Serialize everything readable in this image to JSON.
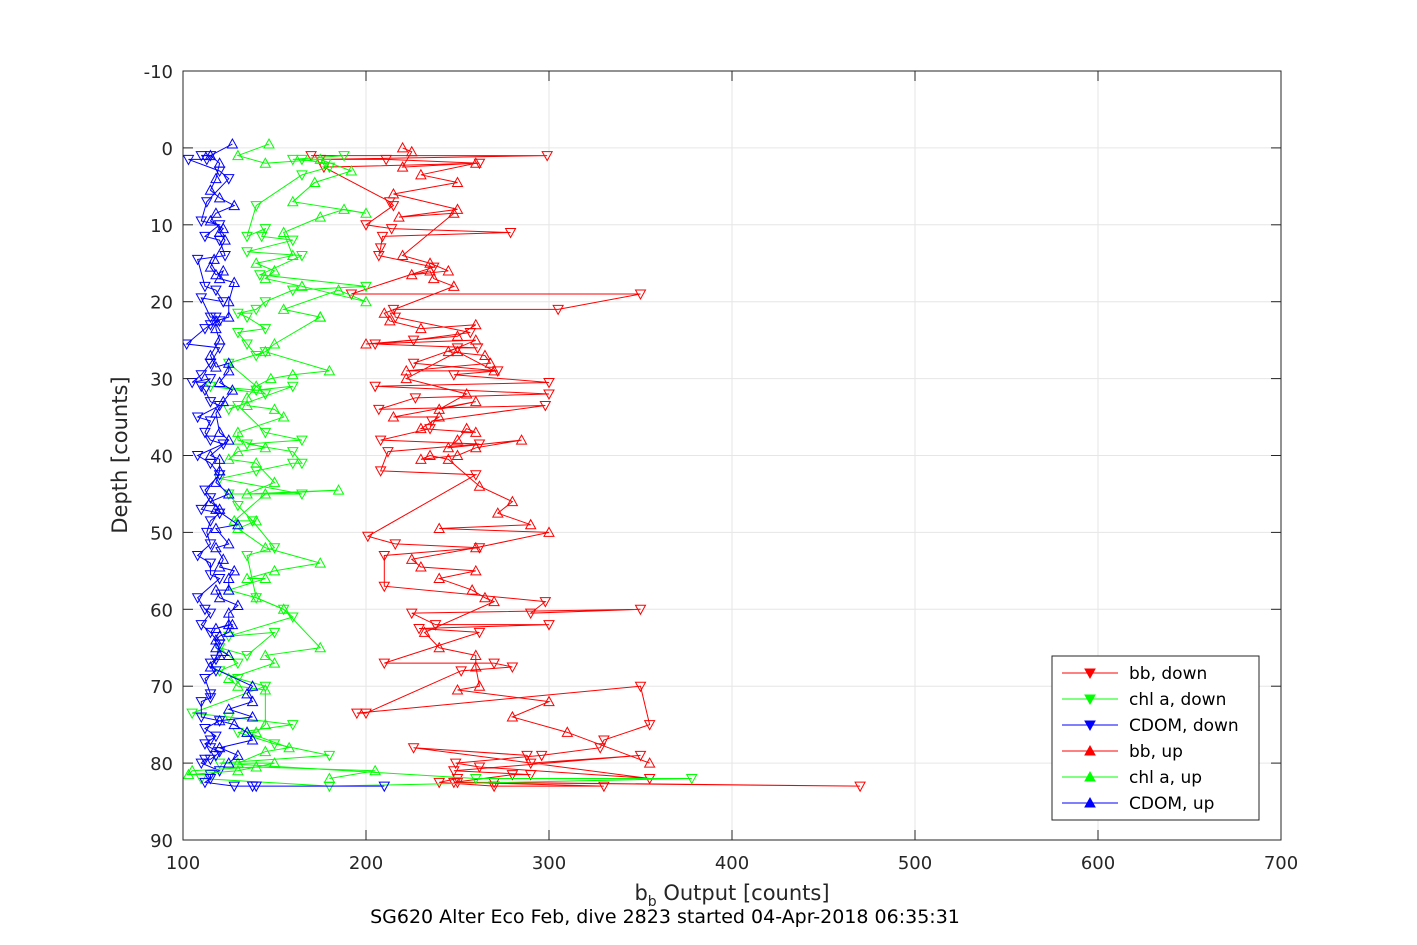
{
  "chart_data": {
    "type": "line",
    "xlabel_main": "b",
    "xlabel_sub": "b",
    "xlabel_rest": " Output [counts]",
    "ylabel": "Depth [counts]",
    "caption": "SG620 Alter Eco Feb, dive 2823 started 04-Apr-2018 06:35:31",
    "xlim": [
      100,
      700
    ],
    "ylim": [
      -10,
      90
    ],
    "y_reversed": true,
    "grid": true,
    "legend_position": "bottom-right",
    "xticks": [
      "100",
      "200",
      "300",
      "400",
      "500",
      "600",
      "700"
    ],
    "yticks": [
      "-10",
      "0",
      "10",
      "20",
      "30",
      "40",
      "50",
      "60",
      "70",
      "80",
      "90"
    ],
    "series": [
      {
        "name": "bb, down",
        "color": "#ff0000",
        "marker": "triangle-down",
        "x": [
          170,
          299,
          175,
          211,
          262,
          177,
          213,
          215,
          200,
          214,
          279,
          209,
          208,
          207,
          237,
          192,
          350,
          305,
          215,
          216,
          257,
          226,
          205,
          261,
          250,
          226,
          272,
          248,
          300,
          205,
          300,
          227,
          207,
          298,
          236,
          235,
          208,
          262,
          212,
          208,
          260,
          201,
          216,
          262,
          210,
          210,
          298,
          290,
          350,
          225,
          238,
          300,
          229,
          262,
          210,
          270,
          280,
          252,
          200,
          195,
          350,
          355,
          330,
          328,
          296,
          249,
          262,
          355,
          226,
          288,
          290,
          350,
          248,
          290,
          280,
          248,
          270,
          470,
          250,
          330,
          270,
          240,
          250
        ],
        "y": [
          1,
          1,
          1.5,
          1.5,
          2,
          2.5,
          7,
          7.5,
          10,
          10.5,
          11,
          11.5,
          13,
          14,
          15.5,
          19,
          19,
          21,
          21,
          22,
          24,
          25,
          25.5,
          26,
          26,
          28,
          29,
          29.5,
          30.5,
          31,
          32,
          32.5,
          34,
          33.5,
          35.5,
          36.5,
          38,
          38.5,
          39.5,
          42,
          42.5,
          50.5,
          51.5,
          52,
          53,
          57,
          59,
          60.5,
          60,
          60.5,
          62,
          62,
          62.5,
          63,
          67,
          67,
          67.5,
          68,
          73.5,
          73.5,
          70,
          75,
          77,
          78,
          79,
          80,
          80.5,
          82,
          78,
          79,
          80,
          79,
          81,
          81.5,
          81.5,
          82.5,
          82.5,
          83,
          82.5,
          83,
          83,
          82.5,
          82
        ]
      },
      {
        "name": "chl a, down",
        "color": "#00ff00",
        "marker": "triangle-down",
        "x": [
          188,
          160,
          165,
          178,
          180,
          165,
          140,
          135,
          145,
          143,
          160,
          135,
          165,
          142,
          200,
          160,
          145,
          140,
          130,
          135,
          145,
          130,
          135,
          140,
          145,
          125,
          145,
          115,
          140,
          160,
          125,
          130,
          145,
          165,
          135,
          160,
          165,
          160,
          140,
          120,
          165,
          125,
          130,
          138,
          150,
          135,
          140,
          155,
          160,
          125,
          150,
          135,
          120,
          130,
          120,
          130,
          145,
          105,
          125,
          160,
          130,
          150,
          180,
          120,
          260,
          378,
          180,
          110
        ],
        "y": [
          1,
          1.5,
          1.5,
          2,
          2.5,
          3.5,
          7.5,
          11.5,
          10.5,
          11.5,
          12,
          13.5,
          14,
          16.5,
          18,
          18.5,
          20,
          21,
          21.5,
          22,
          23.5,
          24,
          25.5,
          27,
          26.5,
          28,
          32,
          31,
          31.5,
          31,
          34,
          33.5,
          37,
          38,
          38.5,
          39.5,
          41,
          41,
          42,
          43,
          45,
          45,
          46.5,
          48.5,
          52,
          53,
          58.5,
          60,
          61,
          63.5,
          63,
          66,
          65,
          67,
          68,
          69,
          70,
          73.5,
          74,
          75,
          76,
          77.5,
          79,
          80,
          82,
          82,
          83,
          82
        ]
      },
      {
        "name": "CDOM, down",
        "color": "#0000ff",
        "marker": "triangle-down",
        "x": [
          110,
          115,
          113,
          103,
          120,
          125,
          113,
          110,
          120,
          112,
          120,
          123,
          108,
          112,
          118,
          122,
          110,
          115,
          118,
          120,
          115,
          112,
          102,
          120,
          115,
          115,
          110,
          105,
          115,
          110,
          112,
          115,
          120,
          108,
          115,
          112,
          115,
          122,
          108,
          115,
          120,
          112,
          115,
          110,
          120,
          115,
          113,
          115,
          108,
          115,
          115,
          120,
          108,
          112,
          115,
          110,
          115,
          120,
          118,
          115,
          118,
          112,
          115,
          115,
          110,
          110,
          120,
          112,
          118,
          115,
          112,
          115,
          120,
          118,
          115,
          112,
          110,
          120,
          115,
          115,
          112,
          128,
          138,
          140,
          210
        ],
        "y": [
          1,
          1,
          1.5,
          1.5,
          3,
          4,
          7,
          9.5,
          10,
          11.5,
          12,
          14,
          14.5,
          18,
          18.5,
          20,
          19.5,
          22,
          22,
          22.5,
          23,
          23.5,
          25.5,
          26,
          28,
          28,
          29.5,
          30.5,
          30,
          31,
          31.5,
          33,
          33.5,
          35,
          35.5,
          37,
          38,
          38.5,
          40,
          41,
          42.5,
          44.5,
          45.5,
          47,
          47.5,
          48.5,
          50,
          51.5,
          53,
          54,
          55.5,
          56,
          58.5,
          60,
          60.5,
          62,
          63,
          64.5,
          66.5,
          67,
          68,
          69,
          71,
          71.5,
          72,
          74,
          74.5,
          75.5,
          76.5,
          77,
          77.5,
          78,
          78.5,
          79,
          79.5,
          79.5,
          80,
          81,
          81.5,
          82,
          82.5,
          83,
          83,
          83,
          83
        ]
      },
      {
        "name": "bb, up",
        "color": "#ff0000",
        "marker": "triangle-up",
        "x": [
          220,
          225,
          220,
          260,
          230,
          250,
          215,
          250,
          218,
          248,
          220,
          235,
          245,
          225,
          235,
          237,
          248,
          210,
          213,
          230,
          260,
          250,
          200,
          260,
          245,
          265,
          268,
          222,
          270,
          250,
          222,
          255,
          240,
          260,
          215,
          240,
          230,
          260,
          255,
          250,
          245,
          285,
          260,
          250,
          230,
          235,
          245,
          262,
          280,
          272,
          290,
          240,
          300,
          260,
          225,
          230,
          260,
          240,
          258,
          265,
          270,
          232,
          240,
          260,
          260,
          262,
          250,
          300,
          280,
          310,
          355
        ],
        "y": [
          0,
          0.5,
          2.5,
          2,
          3.5,
          4.5,
          6,
          8,
          9,
          8.5,
          14,
          15,
          16,
          16.5,
          16,
          17,
          18,
          21.5,
          22.5,
          23.5,
          23,
          24.5,
          25.5,
          25,
          26.5,
          27,
          28,
          29,
          29,
          26.5,
          30,
          32,
          34,
          33,
          35,
          35,
          36.5,
          37,
          36.5,
          38,
          39,
          38,
          39,
          40,
          40.5,
          40,
          40.5,
          44,
          46,
          47.5,
          49,
          49.5,
          50,
          52,
          53.5,
          54.5,
          55,
          56,
          57.5,
          58.5,
          59,
          63,
          65,
          66,
          67.5,
          70,
          70.5,
          72,
          74,
          76,
          80
        ]
      },
      {
        "name": "chl a, up",
        "color": "#00ff00",
        "marker": "triangle-up",
        "x": [
          147,
          130,
          145,
          175,
          192,
          172,
          160,
          200,
          188,
          175,
          155,
          160,
          140,
          150,
          145,
          165,
          200,
          185,
          155,
          175,
          175,
          150,
          145,
          180,
          160,
          148,
          140,
          135,
          135,
          150,
          155,
          130,
          130,
          145,
          130,
          125,
          140,
          150,
          135,
          185,
          145,
          128,
          140,
          130,
          145,
          175,
          150,
          135,
          145,
          125,
          140,
          155,
          175,
          145,
          150,
          125,
          130,
          145,
          145,
          140,
          135,
          158,
          145,
          130,
          150,
          130,
          103,
          105,
          140,
          205,
          180
        ],
        "y": [
          -0.5,
          1,
          2,
          1.5,
          3,
          4.5,
          7,
          8.5,
          8,
          9,
          11,
          14,
          15,
          16,
          17,
          18,
          20,
          18.5,
          21,
          22,
          22,
          25.5,
          26.5,
          29,
          29.5,
          30,
          31,
          32.5,
          33.5,
          34,
          35,
          37,
          38,
          39,
          39.5,
          40.5,
          41,
          43.5,
          45,
          44.5,
          45,
          48.5,
          48.5,
          49.5,
          52,
          54,
          55,
          56,
          56,
          57.5,
          58.5,
          60,
          65,
          66,
          67,
          69,
          70,
          70.5,
          75,
          76,
          76,
          78,
          78.5,
          80,
          80,
          81,
          81.5,
          81,
          80.5,
          81,
          82
        ]
      },
      {
        "name": "CDOM, up",
        "color": "#0000ff",
        "marker": "triangle-up",
        "x": [
          127,
          115,
          120,
          118,
          115,
          120,
          128,
          118,
          115,
          122,
          120,
          123,
          117,
          115,
          118,
          122,
          120,
          128,
          125,
          125,
          118,
          118,
          120,
          115,
          118,
          125,
          125,
          120,
          127,
          122,
          118,
          120,
          125,
          115,
          120,
          120,
          118,
          125,
          115,
          120,
          118,
          130,
          118,
          125,
          118,
          122,
          120,
          128,
          125,
          125,
          118,
          120,
          130,
          125,
          125,
          118,
          127,
          125,
          120,
          118,
          118,
          125,
          120,
          115,
          138,
          135,
          138,
          125,
          138,
          120,
          128,
          135,
          138,
          120,
          130,
          125
        ],
        "y": [
          -0.5,
          1,
          2,
          4,
          5.5,
          6.5,
          7.5,
          8.5,
          9.5,
          10.5,
          11,
          12,
          14.5,
          15.5,
          16.5,
          16,
          17,
          17.5,
          20,
          22,
          22.5,
          23.5,
          25,
          27,
          28.5,
          28,
          29,
          30.5,
          31.5,
          33,
          34.5,
          37,
          38,
          40,
          40.5,
          42,
          43.5,
          45,
          46,
          47,
          47,
          49,
          49.5,
          51.5,
          52,
          53.5,
          54.5,
          55,
          56,
          57.5,
          57.5,
          58.5,
          59.5,
          60.5,
          62,
          62.5,
          62,
          63,
          63.5,
          64,
          65,
          66,
          66,
          67.5,
          70,
          71,
          72,
          73,
          74,
          74.5,
          75,
          76,
          77,
          78,
          79,
          80
        ]
      }
    ]
  }
}
